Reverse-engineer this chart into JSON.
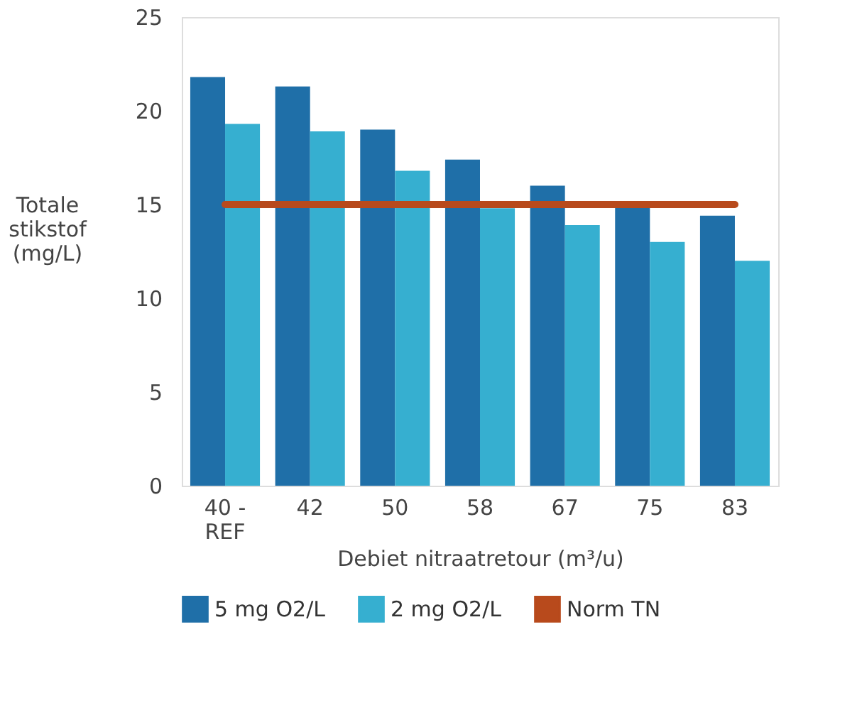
{
  "chart_data": {
    "type": "bar",
    "xlabel": "Debiet nitraatretour (m³/u)",
    "ylabel": "Totale stikstof (mg/L)",
    "categories": [
      "40 - REF",
      "42",
      "50",
      "58",
      "67",
      "75",
      "83"
    ],
    "series": [
      {
        "name": "5 mg O2/L",
        "color": "#1f6fa8",
        "values": [
          21.8,
          21.3,
          19.0,
          17.4,
          16.0,
          15.0,
          14.4
        ]
      },
      {
        "name": "2 mg O2/L",
        "color": "#36afd0",
        "values": [
          19.3,
          18.9,
          16.8,
          14.8,
          13.9,
          13.0,
          12.0
        ]
      },
      {
        "name": "Norm TN",
        "type": "line",
        "color": "#b84a1c",
        "values": [
          15,
          15,
          15,
          15,
          15,
          15,
          15
        ]
      }
    ],
    "ylim": [
      0,
      25
    ],
    "yticks": [
      0,
      5,
      10,
      15,
      20,
      25
    ],
    "grid": false,
    "legend": "bottom"
  }
}
